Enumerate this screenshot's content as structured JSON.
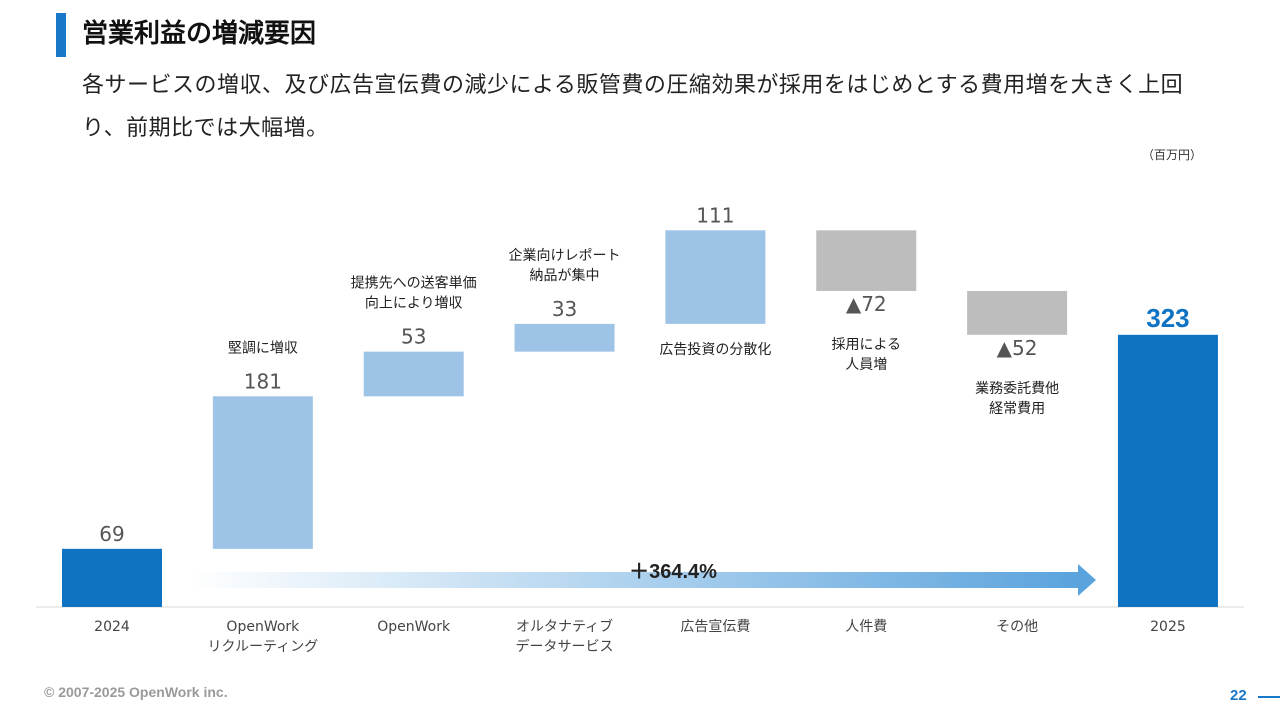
{
  "header": {
    "title": "営業利益の増減要因",
    "subtitle": "各サービスの増収、及び広告宣伝費の減少による販管費の圧縮効果が採用をはじめとする費用増を大きく上回り、前期比では大幅増。",
    "unit": "（百万円）"
  },
  "colors": {
    "accent": "#1a78c8",
    "total": "#0f73c3",
    "increase": "#9dc3e6",
    "decrease": "#bdbdbd",
    "arrow": "#5ba3dd"
  },
  "chart_data": {
    "type": "waterfall",
    "categories": [
      "2024",
      "OpenWork\nリクルーティング",
      "OpenWork",
      "オルタナティブ\nデータサービス",
      "広告宣伝費",
      "人件費",
      "その他",
      "2025"
    ],
    "values": [
      69,
      181,
      53,
      33,
      111,
      -72,
      -52,
      323
    ],
    "value_labels": [
      "69",
      "181",
      "53",
      "33",
      "111",
      "▲72",
      "▲52",
      "323"
    ],
    "kinds": [
      "total",
      "increase",
      "increase",
      "increase",
      "increase",
      "decrease",
      "decrease",
      "total"
    ],
    "annotations": [
      "",
      "堅調に増収",
      "提携先への送客単価\n向上により増収",
      "企業向けレポート\n納品が集中",
      "広告投資の分散化",
      "採用による\n人員増",
      "業務委託費他\n経常費用",
      ""
    ],
    "growth_label": "＋364.4%",
    "unit": "百万円"
  },
  "footer": {
    "copyright": "© 2007-2025 OpenWork inc.",
    "page": "22"
  }
}
